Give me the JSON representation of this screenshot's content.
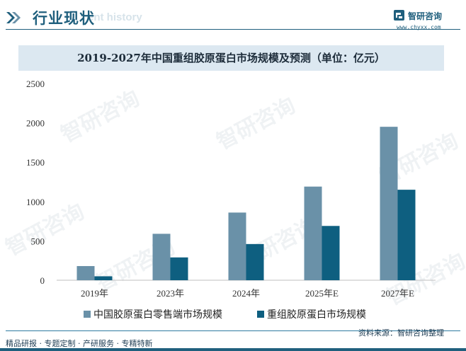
{
  "header": {
    "title": "行业现状",
    "ghost_text": "ent history",
    "brand_name": "智研咨询",
    "brand_url": "www.chyxx.com"
  },
  "watermark": "智研咨询",
  "colors": {
    "primary": "#1f5f7d",
    "series1": "#6a91a8",
    "series2": "#0e5f80",
    "title_bg": "#dce8f1"
  },
  "chart_data": {
    "type": "bar",
    "title": "2019-2027年中国重组胶原蛋白市场规模及预测（单位：亿元）",
    "categories": [
      "2019年",
      "2023年",
      "2024年",
      "2025年E",
      "2027年E"
    ],
    "series": [
      {
        "name": "中国胶原蛋白零售端市场规模",
        "color": "#6a91a8",
        "values": [
          180,
          590,
          860,
          1190,
          1950
        ]
      },
      {
        "name": "重组胶原蛋白市场规模",
        "color": "#0e5f80",
        "values": [
          50,
          290,
          460,
          690,
          1150
        ]
      }
    ],
    "ylim": [
      0,
      2500
    ],
    "yticks": [
      "0",
      "500",
      "1000",
      "1500",
      "2000",
      "2500"
    ],
    "xlabel": "",
    "ylabel": "",
    "grid": false,
    "legend_position": "bottom"
  },
  "footer": {
    "left": "精品研报 · 专题定制 · 产研服务 · 专精特新",
    "right": "资料来源：智研咨询整理"
  }
}
